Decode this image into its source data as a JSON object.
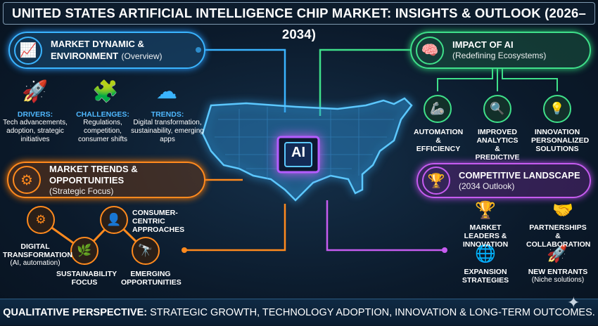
{
  "title": "UNITED STATES ARTIFICIAL INTELLIGENCE CHIP MARKET: INSIGHTS & OUTLOOK (2026–2034)",
  "colors": {
    "blue": "#3ab4ff",
    "orange": "#ff8a1e",
    "green": "#3fe08a",
    "purple": "#c65cf0",
    "background": "#0b1a2b"
  },
  "market_dynamic": {
    "title_line1": "MARKET DYNAMIC &",
    "title_line2": "ENVIRONMENT",
    "subtitle": "(Overview)",
    "icon": "chart-growth-icon",
    "items": [
      {
        "icon": "rocket-icon",
        "label": "DRIVERS:",
        "text": "Tech advancements, adoption, strategic initiatives"
      },
      {
        "icon": "puzzle-lock-icon",
        "label": "CHALLENGES:",
        "text": "Regulations, competition, consumer shifts"
      },
      {
        "icon": "cloud-sync-icon",
        "label": "TRENDS:",
        "text": "Digital transformation, sustainability, emerging apps"
      }
    ]
  },
  "market_trends": {
    "title": "MARKET TRENDS & OPPORTUNITIES",
    "subtitle": "(Strategic Focus)",
    "icon": "gear-icon",
    "items": [
      {
        "icon": "gears-icon",
        "label": "DIGITAL TRANSFORMATION",
        "sub": "(AI, automation)"
      },
      {
        "icon": "leaf-icon",
        "label": "SUSTAINABILITY FOCUS",
        "sub": ""
      },
      {
        "icon": "person-heart-icon",
        "label": "CONSUMER-CENTRIC APPROACHES",
        "sub": ""
      },
      {
        "icon": "telescope-icon",
        "label": "EMERGING OPPORTUNITIES",
        "sub": ""
      }
    ]
  },
  "impact_ai": {
    "title": "IMPACT OF AI",
    "subtitle": "(Redefining Ecosystems)",
    "icon": "brain-circuit-icon",
    "items": [
      {
        "icon": "robot-arm-icon",
        "label": "AUTOMATION & EFFICIENCY"
      },
      {
        "icon": "analytics-magnifier-icon",
        "label": "IMPROVED ANALYTICS & PREDICTIVE"
      },
      {
        "icon": "lightbulb-icon",
        "label": "INNOVATION PERSONALIZED SOLUTIONS"
      }
    ]
  },
  "competitive": {
    "title": "COMPETITIVE LANDSCAPE",
    "subtitle": "(2034 Outlook)",
    "icon": "trophy-podium-icon",
    "items": [
      {
        "icon": "trophy-podium-icon",
        "label": "MARKET LEADERS & INNOVATION",
        "sub": ""
      },
      {
        "icon": "handshake-icon",
        "label": "PARTNERSHIPS & COLLABORATION",
        "sub": ""
      },
      {
        "icon": "globe-icon",
        "label": "EXPANSION STRATEGIES",
        "sub": ""
      },
      {
        "icon": "rocket-icon",
        "label": "NEW ENTRANTS",
        "sub": "(Niche solutions)"
      }
    ]
  },
  "center": {
    "chip_label": "AI",
    "map": "us-circuit-map"
  },
  "footer": {
    "bold": "QUALITATIVE PERSPECTIVE:",
    "text": " STRATEGIC GROWTH, TECHNOLOGY ADOPTION, INNOVATION & LONG-TERM OUTCOMES."
  }
}
